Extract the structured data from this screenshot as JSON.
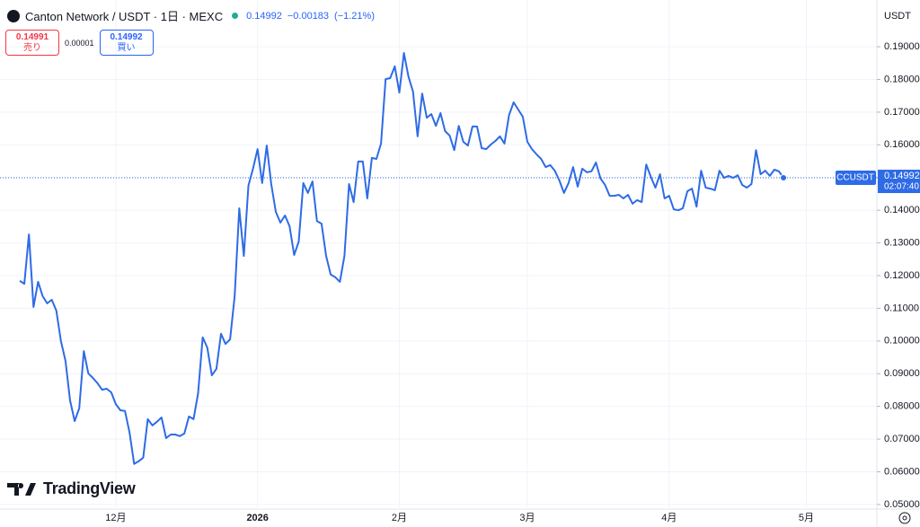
{
  "header": {
    "symbol": "Canton Network / USDT · 1日 · MEXC",
    "price": "0.14992",
    "change": "−0.00183",
    "change_pct": "(−1.21%)",
    "sell_price": "0.14991",
    "sell_label": "売り",
    "spread": "0.00001",
    "buy_price": "0.14992",
    "buy_label": "買い",
    "logo": "TradingView"
  },
  "chart_data": {
    "type": "line",
    "y_axis_unit": "USDT",
    "grid": true,
    "countdown": "02:07:40",
    "last_price_label": "0.14992",
    "categories": [
      null,
      null,
      null,
      null,
      null,
      null,
      null,
      null,
      null,
      null,
      null,
      null,
      null,
      null,
      null,
      null,
      null,
      null,
      null,
      null,
      null,
      "12月",
      null,
      null,
      null,
      null,
      null,
      null,
      null,
      null,
      null,
      null,
      null,
      null,
      null,
      null,
      null,
      null,
      null,
      null,
      null,
      null,
      null,
      null,
      null,
      null,
      null,
      null,
      null,
      null,
      null,
      null,
      "2026",
      null,
      null,
      null,
      null,
      null,
      null,
      null,
      null,
      null,
      null,
      null,
      null,
      null,
      null,
      null,
      null,
      null,
      null,
      null,
      null,
      null,
      null,
      null,
      null,
      null,
      null,
      null,
      null,
      null,
      null,
      "2月",
      null,
      null,
      null,
      null,
      null,
      null,
      null,
      null,
      null,
      null,
      null,
      null,
      null,
      null,
      null,
      null,
      null,
      null,
      null,
      null,
      null,
      null,
      null,
      null,
      null,
      null,
      null,
      "3月",
      null,
      null,
      null,
      null,
      null,
      null,
      null,
      null,
      null,
      null,
      null,
      null,
      null,
      null,
      null,
      null,
      null,
      null,
      null,
      null,
      null,
      null,
      null,
      null,
      null,
      null,
      null,
      null,
      null,
      null,
      "4月",
      null,
      null,
      null,
      null,
      null,
      null,
      null,
      null,
      null,
      null,
      null,
      null,
      null,
      null,
      null,
      null,
      null,
      null,
      null,
      null,
      null,
      null,
      null,
      null,
      null,
      null,
      null,
      null,
      null,
      "5月"
    ],
    "series": [
      {
        "name": "CCUSDT",
        "color": "#2e6be6",
        "values": [
          0.1184,
          0.1175,
          0.1326,
          0.1104,
          0.1181,
          0.1137,
          0.1115,
          0.1126,
          0.1093,
          0.1,
          0.0939,
          0.0818,
          0.0755,
          0.0794,
          0.0969,
          0.0901,
          0.0887,
          0.0871,
          0.0851,
          0.0854,
          0.0843,
          0.0807,
          0.0788,
          0.0786,
          0.072,
          0.0624,
          0.0632,
          0.0643,
          0.0761,
          0.0742,
          0.0753,
          0.0766,
          0.0703,
          0.0714,
          0.0714,
          0.0709,
          0.0717,
          0.0769,
          0.0761,
          0.084,
          0.1011,
          0.098,
          0.0895,
          0.0915,
          0.1022,
          0.0991,
          0.1005,
          0.1137,
          0.1406,
          0.126,
          0.1475,
          0.1527,
          0.1587,
          0.1483,
          0.1598,
          0.148,
          0.1395,
          0.1362,
          0.1384,
          0.1351,
          0.1263,
          0.1304,
          0.1483,
          0.1453,
          0.1488,
          0.1367,
          0.1359,
          0.126,
          0.1203,
          0.1195,
          0.1181,
          0.126,
          0.148,
          0.1425,
          0.1549,
          0.1549,
          0.1436,
          0.156,
          0.1557,
          0.1604,
          0.1801,
          0.1804,
          0.184,
          0.176,
          0.1881,
          0.1809,
          0.1763,
          0.1626,
          0.1757,
          0.1683,
          0.1694,
          0.1658,
          0.1697,
          0.1642,
          0.1628,
          0.1584,
          0.1658,
          0.1609,
          0.1598,
          0.1656,
          0.1656,
          0.159,
          0.1587,
          0.1601,
          0.1612,
          0.1626,
          0.1604,
          0.1691,
          0.173,
          0.1708,
          0.1686,
          0.1609,
          0.1587,
          0.1571,
          0.1557,
          0.1532,
          0.1538,
          0.1521,
          0.1491,
          0.1453,
          0.1483,
          0.1532,
          0.1472,
          0.1527,
          0.1516,
          0.1519,
          0.1546,
          0.1497,
          0.1477,
          0.1444,
          0.1444,
          0.1447,
          0.1436,
          0.1447,
          0.142,
          0.1431,
          0.1425,
          0.154,
          0.1502,
          0.1469,
          0.151,
          0.1436,
          0.1444,
          0.1403,
          0.14,
          0.1406,
          0.1458,
          0.1466,
          0.1411,
          0.1521,
          0.1469,
          0.1466,
          0.1461,
          0.1521,
          0.1499,
          0.1505,
          0.1499,
          0.1507,
          0.1477,
          0.1469,
          0.148,
          0.1584,
          0.151,
          0.1521,
          0.1505,
          0.1524,
          0.1519,
          0.14992,
          null,
          null,
          null,
          null,
          null
        ]
      }
    ],
    "ylim": [
      0.0486,
      0.2043
    ],
    "yticks": [
      {
        "value": 0.05,
        "label": "0.05000"
      },
      {
        "value": 0.06,
        "label": "0.06000"
      },
      {
        "value": 0.07,
        "label": "0.07000"
      },
      {
        "value": 0.08,
        "label": "0.08000"
      },
      {
        "value": 0.09,
        "label": "0.09000"
      },
      {
        "value": 0.1,
        "label": "0.10000"
      },
      {
        "value": 0.11,
        "label": "0.11000"
      },
      {
        "value": 0.12,
        "label": "0.12000"
      },
      {
        "value": 0.13,
        "label": "0.13000"
      },
      {
        "value": 0.14,
        "label": "0.14000"
      },
      {
        "value": 0.15,
        "label": "0.15000"
      },
      {
        "value": 0.16,
        "label": "0.16000"
      },
      {
        "value": 0.17,
        "label": "0.17000"
      },
      {
        "value": 0.18,
        "label": "0.18000"
      },
      {
        "value": 0.19,
        "label": "0.19000"
      }
    ]
  }
}
